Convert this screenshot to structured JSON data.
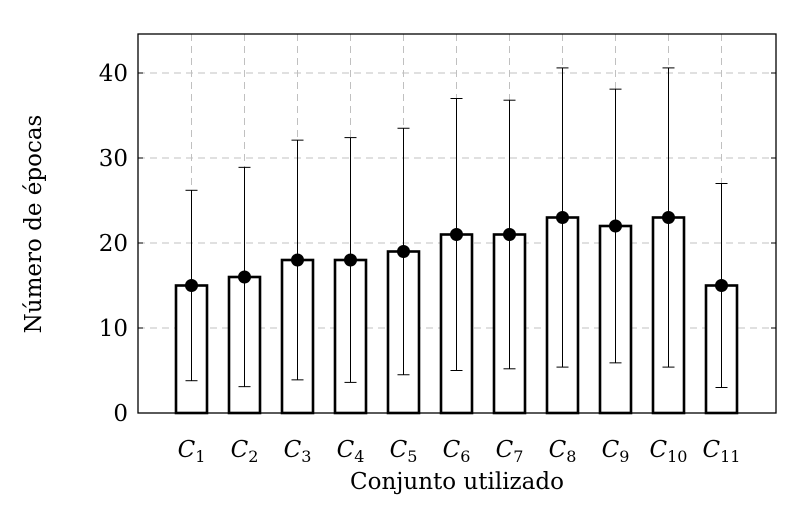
{
  "chart_data": {
    "type": "bar",
    "xlabel": "Conjunto utilizado",
    "ylabel": "Número de épocas",
    "ylim": [
      0,
      45
    ],
    "yticks": [
      0,
      10,
      20,
      30,
      40
    ],
    "grid": true,
    "categories": [
      {
        "base": "C",
        "sub": "1"
      },
      {
        "base": "C",
        "sub": "2"
      },
      {
        "base": "C",
        "sub": "3"
      },
      {
        "base": "C",
        "sub": "4"
      },
      {
        "base": "C",
        "sub": "5"
      },
      {
        "base": "C",
        "sub": "6"
      },
      {
        "base": "C",
        "sub": "7"
      },
      {
        "base": "C",
        "sub": "8"
      },
      {
        "base": "C",
        "sub": "9"
      },
      {
        "base": "C",
        "sub": "10"
      },
      {
        "base": "C",
        "sub": "11"
      }
    ],
    "values": [
      15,
      16,
      18,
      18,
      19,
      21,
      21,
      23,
      22,
      23,
      15
    ],
    "error_low": [
      3.8,
      3.1,
      3.9,
      3.6,
      4.5,
      5.0,
      5.2,
      5.4,
      5.9,
      5.4,
      3.0
    ],
    "error_high": [
      26.2,
      28.9,
      32.1,
      32.4,
      33.5,
      37.0,
      36.8,
      40.6,
      38.1,
      40.6,
      27.0
    ],
    "colors": {
      "bar_fill": "#ffffff",
      "bar_stroke": "#000000",
      "marker": "#000000",
      "grid": "#c0c0c0"
    }
  }
}
